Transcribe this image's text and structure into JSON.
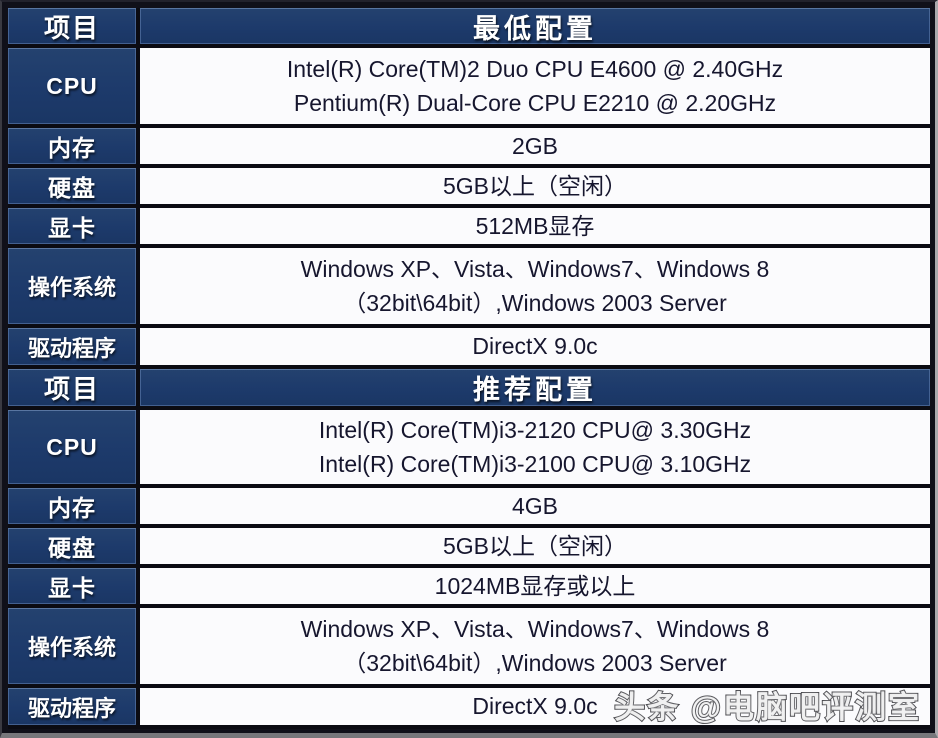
{
  "table": {
    "sections": [
      {
        "header": {
          "item": "项目",
          "config": "最低配置"
        },
        "rows": [
          {
            "label": "CPU",
            "line1": "Intel(R) Core(TM)2 Duo CPU E4600 @ 2.40GHz",
            "line2": "Pentium(R) Dual-Core CPU E2210 @ 2.20GHz"
          },
          {
            "label": "内存",
            "line1": "2GB"
          },
          {
            "label": "硬盘",
            "line1": "5GB以上（空闲）"
          },
          {
            "label": "显卡",
            "line1": "512MB显存"
          },
          {
            "label": "操作系统",
            "line1": "Windows XP、Vista、Windows7、Windows 8",
            "line2": "（32bit\\64bit）,Windows 2003 Server"
          },
          {
            "label": "驱动程序",
            "line1": "DirectX 9.0c"
          }
        ]
      },
      {
        "header": {
          "item": "项目",
          "config": "推荐配置"
        },
        "rows": [
          {
            "label": "CPU",
            "line1": "Intel(R) Core(TM)i3-2120 CPU@ 3.30GHz",
            "line2": "Intel(R) Core(TM)i3-2100 CPU@ 3.10GHz"
          },
          {
            "label": "内存",
            "line1": "4GB"
          },
          {
            "label": "硬盘",
            "line1": "5GB以上（空闲）"
          },
          {
            "label": "显卡",
            "line1": "1024MB显存或以上"
          },
          {
            "label": "操作系统",
            "line1": "Windows XP、Vista、Windows7、Windows 8",
            "line2": "（32bit\\64bit）,Windows 2003 Server"
          },
          {
            "label": "驱动程序",
            "line1": "DirectX 9.0c"
          }
        ]
      }
    ]
  },
  "watermark": "头条 @电脑吧评测室",
  "colors": {
    "header_blue": "#1d3a6b",
    "cell_white": "#fbfbfd",
    "grid_black": "#0b0b12",
    "value_text": "#16162e",
    "label_text": "#ffffff",
    "frame_bottom_gray": "#77777b"
  }
}
